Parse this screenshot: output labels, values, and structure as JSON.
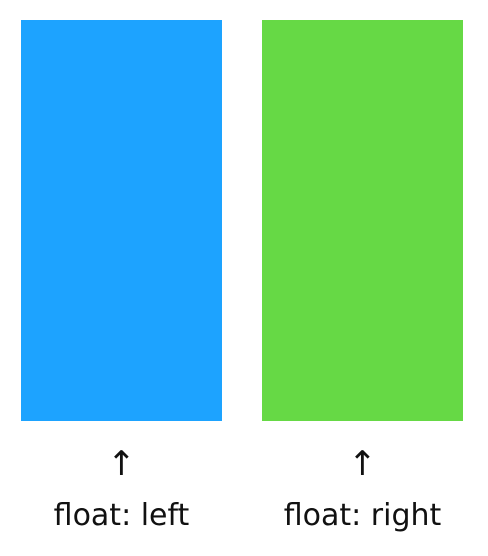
{
  "left": {
    "color": "#1DA3FF",
    "arrow": "↑",
    "label": "float: left"
  },
  "right": {
    "color": "#66D945",
    "arrow": "↑",
    "label": "float: right"
  }
}
